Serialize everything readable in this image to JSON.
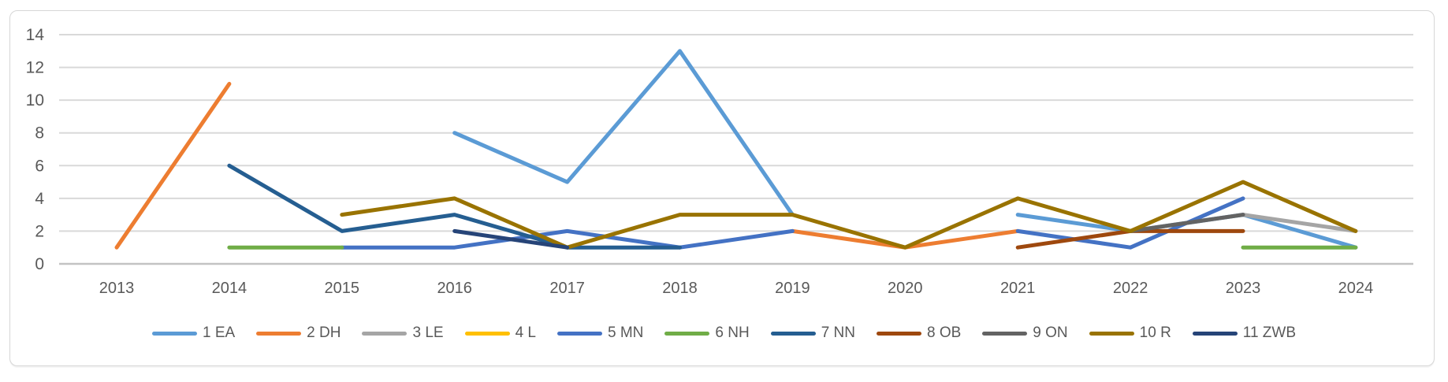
{
  "chart_data": {
    "type": "line",
    "title": "",
    "xlabel": "",
    "ylabel": "",
    "categories": [
      "2013",
      "2014",
      "2015",
      "2016",
      "2017",
      "2018",
      "2019",
      "2020",
      "2021",
      "2022",
      "2023",
      "2024"
    ],
    "y_ticks": [
      0,
      2,
      4,
      6,
      8,
      10,
      12,
      14
    ],
    "ylim": [
      0,
      14
    ],
    "grid": true,
    "legend_position": "bottom",
    "gridline_color": "#d9d9d9",
    "axis_label_color": "#595959",
    "series": [
      {
        "name": "1 EA",
        "color": "#5B9BD5",
        "values": [
          null,
          null,
          null,
          8,
          5,
          13,
          3,
          null,
          3,
          2,
          3,
          1
        ]
      },
      {
        "name": "2 DH",
        "color": "#ED7D31",
        "values": [
          1,
          11,
          null,
          null,
          null,
          null,
          2,
          1,
          2,
          null,
          null,
          null
        ]
      },
      {
        "name": "3 LE",
        "color": "#A5A5A5",
        "values": [
          null,
          null,
          null,
          null,
          null,
          null,
          null,
          null,
          null,
          null,
          3,
          2
        ]
      },
      {
        "name": "4 L",
        "color": "#FFC000",
        "values": [
          null,
          null,
          null,
          null,
          null,
          null,
          null,
          null,
          null,
          null,
          null,
          null
        ]
      },
      {
        "name": "5 MN",
        "color": "#4472C4",
        "values": [
          null,
          null,
          1,
          1,
          2,
          1,
          2,
          null,
          2,
          1,
          4,
          null
        ]
      },
      {
        "name": "6 NH",
        "color": "#70AD47",
        "values": [
          null,
          1,
          1,
          null,
          null,
          null,
          null,
          null,
          null,
          null,
          1,
          1
        ]
      },
      {
        "name": "7 NN",
        "color": "#255E91",
        "values": [
          null,
          6,
          2,
          3,
          1,
          1,
          null,
          null,
          null,
          null,
          null,
          null
        ]
      },
      {
        "name": "8 OB",
        "color": "#9E480E",
        "values": [
          null,
          null,
          null,
          null,
          null,
          null,
          null,
          null,
          1,
          2,
          2,
          null
        ]
      },
      {
        "name": "9 ON",
        "color": "#636363",
        "values": [
          null,
          null,
          null,
          null,
          null,
          null,
          null,
          null,
          null,
          2,
          3,
          null
        ]
      },
      {
        "name": "10 R",
        "color": "#997300",
        "values": [
          null,
          null,
          3,
          4,
          1,
          3,
          3,
          1,
          4,
          2,
          5,
          2
        ]
      },
      {
        "name": "11 ZWB",
        "color": "#264478",
        "values": [
          null,
          null,
          null,
          2,
          1,
          null,
          null,
          null,
          null,
          null,
          null,
          null
        ]
      }
    ]
  }
}
